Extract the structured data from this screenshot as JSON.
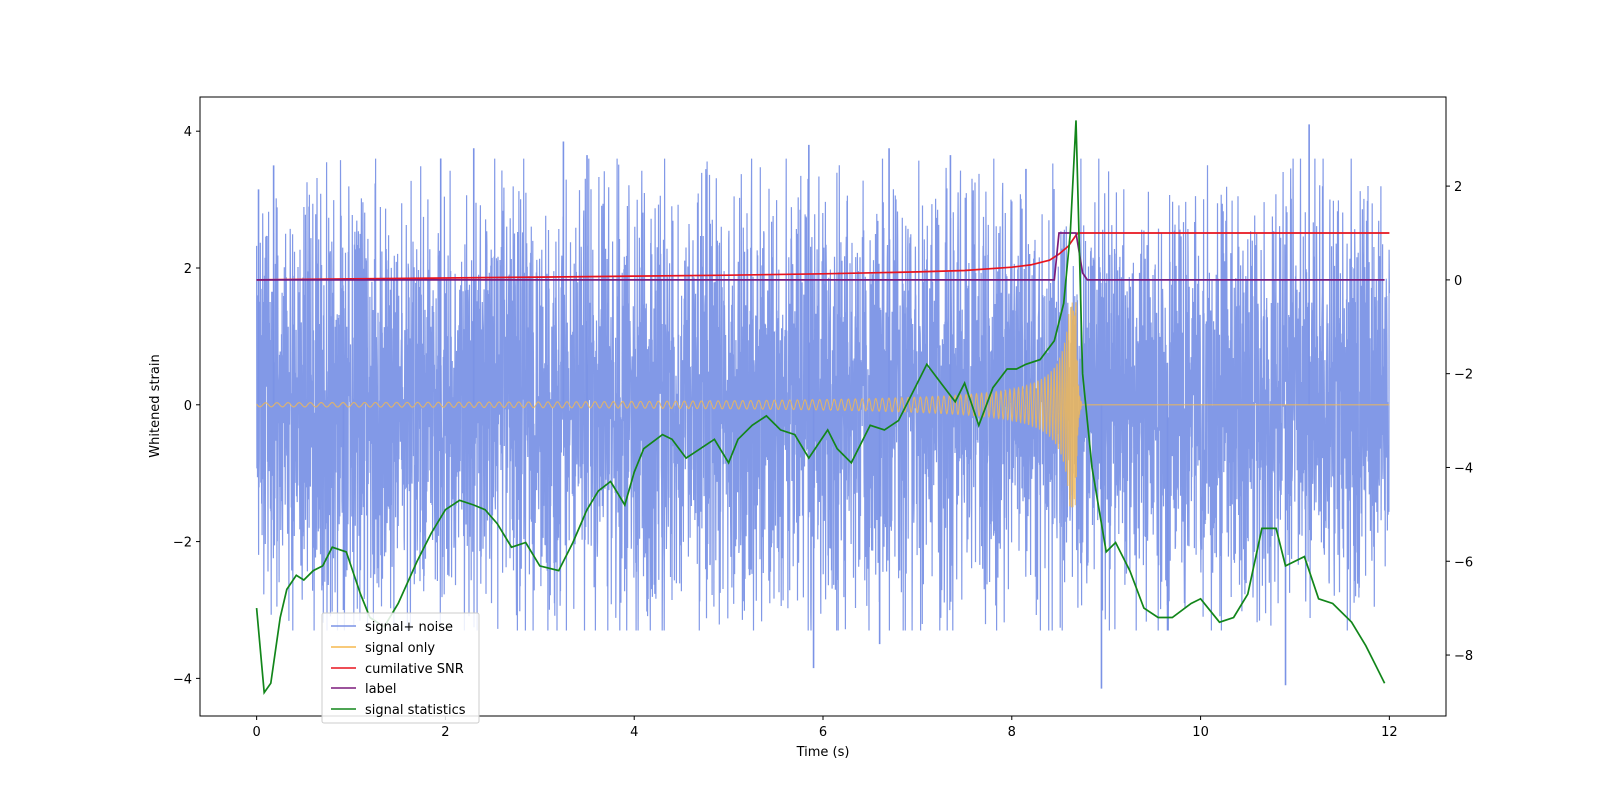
{
  "chart_data": {
    "type": "line",
    "title": "",
    "xlabel": "Time (s)",
    "ylabel": "Whitened strain",
    "y2label": "",
    "xlim": [
      -0.6,
      12.6
    ],
    "ylim": [
      -4.55,
      4.5
    ],
    "y2lim": [
      -9.3,
      3.9
    ],
    "xticks": [
      0,
      2,
      4,
      6,
      8,
      10,
      12
    ],
    "yticks": [
      -4,
      -2,
      0,
      2,
      4
    ],
    "y2ticks": [
      -8,
      -6,
      -4,
      -2,
      0,
      2
    ],
    "legend_position": "lower-left",
    "series": [
      {
        "name": "signal+ noise",
        "axis": "left",
        "color": "#7b93e6",
        "kind": "noise",
        "t_range": [
          0,
          12
        ],
        "band": [
          -1.5,
          1.5
        ],
        "typical_peak_range": [
          -3.3,
          3.9
        ],
        "extremes": [
          {
            "x": 0.02,
            "y": 3.15
          },
          {
            "x": 0.18,
            "y": 3.5
          },
          {
            "x": 1.95,
            "y": 3.6
          },
          {
            "x": 2.3,
            "y": 3.75
          },
          {
            "x": 3.25,
            "y": 3.85
          },
          {
            "x": 3.5,
            "y": 3.65
          },
          {
            "x": 5.85,
            "y": 3.8
          },
          {
            "x": 6.7,
            "y": 3.75
          },
          {
            "x": 7.35,
            "y": 3.65
          },
          {
            "x": 8.15,
            "y": 3.45
          },
          {
            "x": 11.15,
            "y": 4.1
          },
          {
            "x": 0.92,
            "y": -3.0
          },
          {
            "x": 5.9,
            "y": -3.85
          },
          {
            "x": 6.6,
            "y": -3.5
          },
          {
            "x": 8.95,
            "y": -4.15
          },
          {
            "x": 10.9,
            "y": -4.1
          },
          {
            "x": 9.65,
            "y": -3.3
          }
        ]
      },
      {
        "name": "signal only",
        "axis": "left",
        "color": "#f5b94f",
        "kind": "chirp",
        "t_range": [
          0,
          12
        ],
        "t_merger": 8.68,
        "start_amplitude": 0.03,
        "peak_amplitude": 1.5
      },
      {
        "name": "cumilative SNR",
        "axis": "right",
        "color": "#e8141f",
        "x": [
          0,
          1,
          2,
          3,
          4,
          5,
          6,
          7,
          7.5,
          8,
          8.2,
          8.4,
          8.5,
          8.6,
          8.68,
          8.7,
          9,
          10,
          11,
          12
        ],
        "values": [
          0,
          0.02,
          0.04,
          0.06,
          0.08,
          0.1,
          0.13,
          0.17,
          0.2,
          0.27,
          0.32,
          0.42,
          0.55,
          0.72,
          0.95,
          1.0,
          1.0,
          1.0,
          1.0,
          1.0
        ]
      },
      {
        "name": "label",
        "axis": "right",
        "color": "#7b1a7b",
        "x": [
          0,
          8.45,
          8.5,
          8.68,
          8.75,
          8.8,
          11.95
        ],
        "values": [
          0,
          0,
          1,
          1,
          0.15,
          0,
          0
        ]
      },
      {
        "name": "signal statistics",
        "axis": "right",
        "color": "#12861a",
        "x": [
          0,
          0.08,
          0.15,
          0.25,
          0.32,
          0.42,
          0.5,
          0.6,
          0.7,
          0.8,
          0.95,
          1.1,
          1.2,
          1.35,
          1.5,
          1.7,
          1.85,
          2.0,
          2.15,
          2.3,
          2.42,
          2.55,
          2.7,
          2.85,
          3.0,
          3.2,
          3.35,
          3.5,
          3.62,
          3.75,
          3.9,
          4.0,
          4.1,
          4.3,
          4.4,
          4.55,
          4.7,
          4.85,
          5.0,
          5.1,
          5.25,
          5.4,
          5.55,
          5.7,
          5.85,
          5.95,
          6.05,
          6.15,
          6.3,
          6.5,
          6.65,
          6.8,
          6.95,
          7.1,
          7.25,
          7.4,
          7.5,
          7.65,
          7.8,
          7.95,
          8.05,
          8.15,
          8.3,
          8.45,
          8.55,
          8.62,
          8.68,
          8.75,
          8.85,
          9.0,
          9.1,
          9.25,
          9.4,
          9.55,
          9.7,
          9.9,
          10.0,
          10.2,
          10.35,
          10.5,
          10.65,
          10.8,
          10.9,
          11.1,
          11.25,
          11.4,
          11.6,
          11.75,
          11.85,
          11.95
        ],
        "values": [
          -7.0,
          -8.8,
          -8.6,
          -7.2,
          -6.6,
          -6.3,
          -6.4,
          -6.2,
          -6.1,
          -5.7,
          -5.8,
          -6.7,
          -7.2,
          -7.4,
          -6.9,
          -6.0,
          -5.4,
          -4.9,
          -4.7,
          -4.8,
          -4.9,
          -5.2,
          -5.7,
          -5.6,
          -6.1,
          -6.2,
          -5.6,
          -4.9,
          -4.5,
          -4.3,
          -4.8,
          -4.1,
          -3.6,
          -3.3,
          -3.4,
          -3.8,
          -3.6,
          -3.4,
          -3.9,
          -3.4,
          -3.1,
          -2.9,
          -3.2,
          -3.3,
          -3.8,
          -3.5,
          -3.2,
          -3.6,
          -3.9,
          -3.1,
          -3.2,
          -3.0,
          -2.4,
          -1.8,
          -2.2,
          -2.6,
          -2.2,
          -3.1,
          -2.3,
          -1.9,
          -1.9,
          -1.8,
          -1.7,
          -1.3,
          -0.5,
          1.0,
          3.4,
          -2.0,
          -4.0,
          -5.8,
          -5.6,
          -6.2,
          -7.0,
          -7.2,
          -7.2,
          -6.9,
          -6.8,
          -7.3,
          -7.2,
          -6.7,
          -5.3,
          -5.3,
          -6.1,
          -5.9,
          -6.8,
          -6.9,
          -7.3,
          -7.8,
          -8.2,
          -8.6
        ]
      }
    ]
  }
}
